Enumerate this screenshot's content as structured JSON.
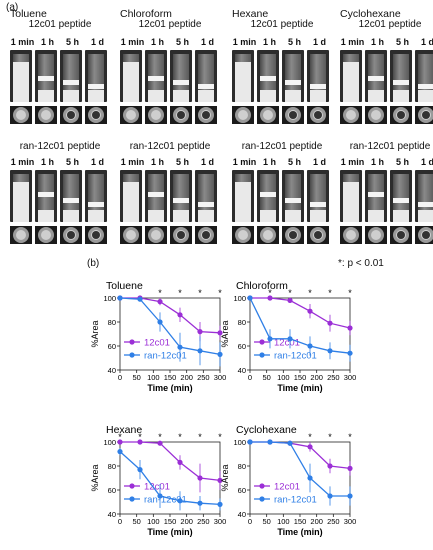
{
  "panel_a": {
    "label": "(a)",
    "times": [
      "1 min",
      "1 h",
      "5 h",
      "1 d"
    ],
    "top_peptide": "12c01 peptide",
    "bottom_peptide": "ran-12c01 peptide",
    "solvents": [
      "Toluene",
      "Chloroform",
      "Hexane",
      "Cyclohexane"
    ]
  },
  "panel_b": {
    "label": "(b)",
    "significance_note": "*: p < 0.01",
    "xlabel": "Time (min)",
    "ylabel": "%Area",
    "xticks": [
      0,
      50,
      100,
      150,
      200,
      250,
      300
    ],
    "yticks": [
      40,
      60,
      80,
      100
    ],
    "colors": {
      "12c01": "#9b2fd6",
      "ran-12c01": "#2f7fe6"
    }
  },
  "chart_data": [
    {
      "type": "line",
      "title": "Toluene",
      "xlabel": "Time (min)",
      "ylabel": "%Area",
      "xlim": [
        0,
        300
      ],
      "ylim": [
        40,
        100
      ],
      "x": [
        0,
        60,
        120,
        180,
        240,
        300
      ],
      "significance_x": [
        120,
        180,
        240,
        300
      ],
      "series": [
        {
          "name": "12c01",
          "values": [
            100,
            100,
            97,
            86,
            72,
            71
          ],
          "err": [
            0,
            1,
            3,
            6,
            8,
            6
          ]
        },
        {
          "name": "ran-12c01",
          "values": [
            100,
            99,
            80,
            59,
            56,
            53
          ],
          "err": [
            0,
            1,
            8,
            12,
            12,
            10
          ]
        }
      ]
    },
    {
      "type": "line",
      "title": "Chloroform",
      "xlabel": "Time (min)",
      "ylabel": "%Area",
      "xlim": [
        0,
        300
      ],
      "ylim": [
        40,
        100
      ],
      "x": [
        0,
        60,
        120,
        180,
        240,
        300
      ],
      "significance_x": [
        60,
        120,
        180,
        240,
        300
      ],
      "series": [
        {
          "name": "12c01",
          "values": [
            100,
            100,
            98,
            89,
            79,
            75
          ],
          "err": [
            0,
            1,
            2,
            6,
            7,
            6
          ]
        },
        {
          "name": "ran-12c01",
          "values": [
            100,
            66,
            66,
            60,
            56,
            54
          ],
          "err": [
            0,
            8,
            8,
            8,
            7,
            7
          ]
        }
      ]
    },
    {
      "type": "line",
      "title": "Hexane",
      "xlabel": "Time (min)",
      "ylabel": "%Area",
      "xlim": [
        0,
        300
      ],
      "ylim": [
        40,
        100
      ],
      "x": [
        0,
        60,
        120,
        180,
        240,
        300
      ],
      "significance_x": [
        0,
        60,
        120,
        180,
        240,
        300
      ],
      "series": [
        {
          "name": "12c01",
          "values": [
            100,
            100,
            99,
            83,
            70,
            68
          ],
          "err": [
            0,
            1,
            2,
            6,
            12,
            8
          ]
        },
        {
          "name": "ran-12c01",
          "values": [
            92,
            77,
            55,
            51,
            49,
            48
          ],
          "err": [
            3,
            8,
            10,
            8,
            6,
            5
          ]
        }
      ]
    },
    {
      "type": "line",
      "title": "Cyclohexane",
      "xlabel": "Time (min)",
      "ylabel": "%Area",
      "xlim": [
        0,
        300
      ],
      "ylim": [
        40,
        100
      ],
      "x": [
        0,
        60,
        120,
        180,
        240,
        300
      ],
      "significance_x": [
        180,
        240,
        300
      ],
      "series": [
        {
          "name": "12c01",
          "values": [
            100,
            100,
            99,
            96,
            80,
            78
          ],
          "err": [
            0,
            1,
            2,
            4,
            6,
            6
          ]
        },
        {
          "name": "ran-12c01",
          "values": [
            100,
            100,
            99,
            70,
            55,
            55
          ],
          "err": [
            0,
            1,
            2,
            12,
            8,
            8
          ]
        }
      ]
    }
  ]
}
